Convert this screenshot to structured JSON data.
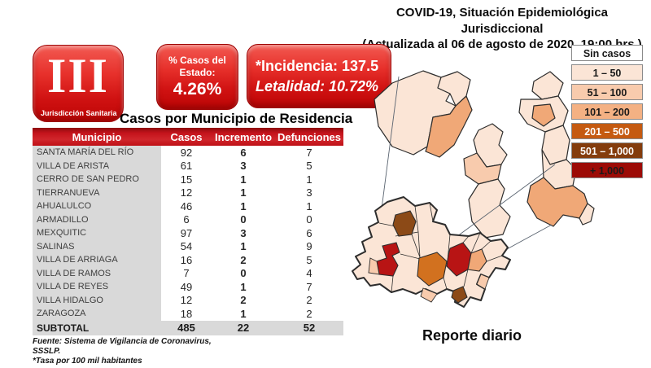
{
  "header": {
    "title_line1": "COVID-19, Situación Epidemiológica Jurisdiccional",
    "title_line2": "(Actualizada al 06 de agosto de 2020, 19:00 hrs.)"
  },
  "badge": {
    "numeral": "III",
    "label": "Jurisdicción Sanitaria"
  },
  "stats": {
    "state_share": {
      "label_line1": "% Casos del",
      "label_line2": "Estado:",
      "value": "4.26%"
    },
    "rates": {
      "incidence": "*Incidencia: 137.5",
      "lethality": "Letalidad: 10.72%"
    }
  },
  "table": {
    "title": "Casos por Municipio  de Residencia",
    "columns": [
      "Municipio",
      "Casos",
      "Incremento",
      "Defunciones"
    ],
    "rows": [
      [
        "SANTA MARÍA DEL RÍO",
        "92",
        "6",
        "7"
      ],
      [
        "VILLA DE ARISTA",
        "61",
        "3",
        "5"
      ],
      [
        "CERRO DE SAN PEDRO",
        "15",
        "1",
        "1"
      ],
      [
        "TIERRANUEVA",
        "12",
        "1",
        "3"
      ],
      [
        "AHUALULCO",
        "46",
        "1",
        "1"
      ],
      [
        "ARMADILLO",
        "6",
        "0",
        "0"
      ],
      [
        "MEXQUITIC",
        "97",
        "3",
        "6"
      ],
      [
        "SALINAS",
        "54",
        "1",
        "9"
      ],
      [
        "VILLA DE ARRIAGA",
        "16",
        "2",
        "5"
      ],
      [
        "VILLA DE RAMOS",
        "7",
        "0",
        "4"
      ],
      [
        "VILLA DE REYES",
        "49",
        "1",
        "7"
      ],
      [
        "VILLA HIDALGO",
        "12",
        "2",
        "2"
      ],
      [
        "ZARAGOZA",
        "18",
        "1",
        "2"
      ]
    ],
    "subtotal": [
      "SUBTOTAL",
      "485",
      "22",
      "52"
    ]
  },
  "footnotes": {
    "source_line1": "Fuente: Sistema de Vigilancia  de Coronavirus,",
    "source_line2": "SSSLP.",
    "rate_note": "*Tasa por 100 mil habitantes"
  },
  "legend": {
    "items": [
      {
        "label": "Sin casos",
        "color": "#ffffff",
        "text_color": "#1a1a1a"
      },
      {
        "label": "1 – 50",
        "color": "#fbe5d6",
        "text_color": "#1a1a1a"
      },
      {
        "label": "51 – 100",
        "color": "#f8cbad",
        "text_color": "#1a1a1a"
      },
      {
        "label": "101 – 200",
        "color": "#f4b183",
        "text_color": "#1a1a1a"
      },
      {
        "label": "201 – 500",
        "color": "#c55a11",
        "text_color": "#ffffff"
      },
      {
        "label": "501 – 1,000",
        "color": "#843c0c",
        "text_color": "#ffffff"
      },
      {
        "label": "+ 1,000",
        "color": "#9c0b06",
        "text_color": "#1a1a1a"
      }
    ]
  },
  "map": {
    "caption": "Reporte diario",
    "palette": {
      "no_cases": "#ffffff",
      "c1_50": "#fbe5d6",
      "c51_100": "#f8cbad",
      "c101_200": "#f0a877",
      "c201_500": "#c55a11",
      "c501_1000": "#843c0c",
      "c1000_plus": "#9c0b06",
      "inset_red": "#b81414",
      "inset_orange": "#d2711f",
      "inset_brown": "#8c4a17",
      "border": "#2d2d2d",
      "leader_line": "#5a6470"
    }
  }
}
